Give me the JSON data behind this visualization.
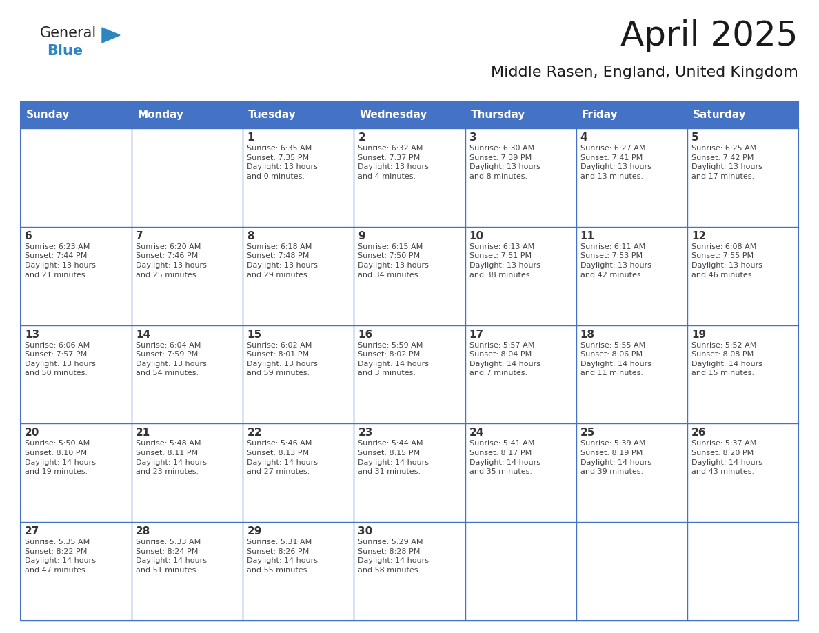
{
  "title": "April 2025",
  "subtitle": "Middle Rasen, England, United Kingdom",
  "header_bg": "#4472C4",
  "header_text_color": "#FFFFFF",
  "day_number_color": "#333333",
  "cell_text_color": "#444444",
  "days_of_week": [
    "Sunday",
    "Monday",
    "Tuesday",
    "Wednesday",
    "Thursday",
    "Friday",
    "Saturday"
  ],
  "weeks": [
    [
      {
        "day": "",
        "info": ""
      },
      {
        "day": "",
        "info": ""
      },
      {
        "day": "1",
        "info": "Sunrise: 6:35 AM\nSunset: 7:35 PM\nDaylight: 13 hours\nand 0 minutes."
      },
      {
        "day": "2",
        "info": "Sunrise: 6:32 AM\nSunset: 7:37 PM\nDaylight: 13 hours\nand 4 minutes."
      },
      {
        "day": "3",
        "info": "Sunrise: 6:30 AM\nSunset: 7:39 PM\nDaylight: 13 hours\nand 8 minutes."
      },
      {
        "day": "4",
        "info": "Sunrise: 6:27 AM\nSunset: 7:41 PM\nDaylight: 13 hours\nand 13 minutes."
      },
      {
        "day": "5",
        "info": "Sunrise: 6:25 AM\nSunset: 7:42 PM\nDaylight: 13 hours\nand 17 minutes."
      }
    ],
    [
      {
        "day": "6",
        "info": "Sunrise: 6:23 AM\nSunset: 7:44 PM\nDaylight: 13 hours\nand 21 minutes."
      },
      {
        "day": "7",
        "info": "Sunrise: 6:20 AM\nSunset: 7:46 PM\nDaylight: 13 hours\nand 25 minutes."
      },
      {
        "day": "8",
        "info": "Sunrise: 6:18 AM\nSunset: 7:48 PM\nDaylight: 13 hours\nand 29 minutes."
      },
      {
        "day": "9",
        "info": "Sunrise: 6:15 AM\nSunset: 7:50 PM\nDaylight: 13 hours\nand 34 minutes."
      },
      {
        "day": "10",
        "info": "Sunrise: 6:13 AM\nSunset: 7:51 PM\nDaylight: 13 hours\nand 38 minutes."
      },
      {
        "day": "11",
        "info": "Sunrise: 6:11 AM\nSunset: 7:53 PM\nDaylight: 13 hours\nand 42 minutes."
      },
      {
        "day": "12",
        "info": "Sunrise: 6:08 AM\nSunset: 7:55 PM\nDaylight: 13 hours\nand 46 minutes."
      }
    ],
    [
      {
        "day": "13",
        "info": "Sunrise: 6:06 AM\nSunset: 7:57 PM\nDaylight: 13 hours\nand 50 minutes."
      },
      {
        "day": "14",
        "info": "Sunrise: 6:04 AM\nSunset: 7:59 PM\nDaylight: 13 hours\nand 54 minutes."
      },
      {
        "day": "15",
        "info": "Sunrise: 6:02 AM\nSunset: 8:01 PM\nDaylight: 13 hours\nand 59 minutes."
      },
      {
        "day": "16",
        "info": "Sunrise: 5:59 AM\nSunset: 8:02 PM\nDaylight: 14 hours\nand 3 minutes."
      },
      {
        "day": "17",
        "info": "Sunrise: 5:57 AM\nSunset: 8:04 PM\nDaylight: 14 hours\nand 7 minutes."
      },
      {
        "day": "18",
        "info": "Sunrise: 5:55 AM\nSunset: 8:06 PM\nDaylight: 14 hours\nand 11 minutes."
      },
      {
        "day": "19",
        "info": "Sunrise: 5:52 AM\nSunset: 8:08 PM\nDaylight: 14 hours\nand 15 minutes."
      }
    ],
    [
      {
        "day": "20",
        "info": "Sunrise: 5:50 AM\nSunset: 8:10 PM\nDaylight: 14 hours\nand 19 minutes."
      },
      {
        "day": "21",
        "info": "Sunrise: 5:48 AM\nSunset: 8:11 PM\nDaylight: 14 hours\nand 23 minutes."
      },
      {
        "day": "22",
        "info": "Sunrise: 5:46 AM\nSunset: 8:13 PM\nDaylight: 14 hours\nand 27 minutes."
      },
      {
        "day": "23",
        "info": "Sunrise: 5:44 AM\nSunset: 8:15 PM\nDaylight: 14 hours\nand 31 minutes."
      },
      {
        "day": "24",
        "info": "Sunrise: 5:41 AM\nSunset: 8:17 PM\nDaylight: 14 hours\nand 35 minutes."
      },
      {
        "day": "25",
        "info": "Sunrise: 5:39 AM\nSunset: 8:19 PM\nDaylight: 14 hours\nand 39 minutes."
      },
      {
        "day": "26",
        "info": "Sunrise: 5:37 AM\nSunset: 8:20 PM\nDaylight: 14 hours\nand 43 minutes."
      }
    ],
    [
      {
        "day": "27",
        "info": "Sunrise: 5:35 AM\nSunset: 8:22 PM\nDaylight: 14 hours\nand 47 minutes."
      },
      {
        "day": "28",
        "info": "Sunrise: 5:33 AM\nSunset: 8:24 PM\nDaylight: 14 hours\nand 51 minutes."
      },
      {
        "day": "29",
        "info": "Sunrise: 5:31 AM\nSunset: 8:26 PM\nDaylight: 14 hours\nand 55 minutes."
      },
      {
        "day": "30",
        "info": "Sunrise: 5:29 AM\nSunset: 8:28 PM\nDaylight: 14 hours\nand 58 minutes."
      },
      {
        "day": "",
        "info": ""
      },
      {
        "day": "",
        "info": ""
      },
      {
        "day": "",
        "info": ""
      }
    ]
  ],
  "logo_general_color": "#222222",
  "logo_blue_color": "#2E86C1",
  "logo_triangle_color": "#2E86C1",
  "title_color": "#1a1a1a",
  "subtitle_color": "#1a1a1a"
}
